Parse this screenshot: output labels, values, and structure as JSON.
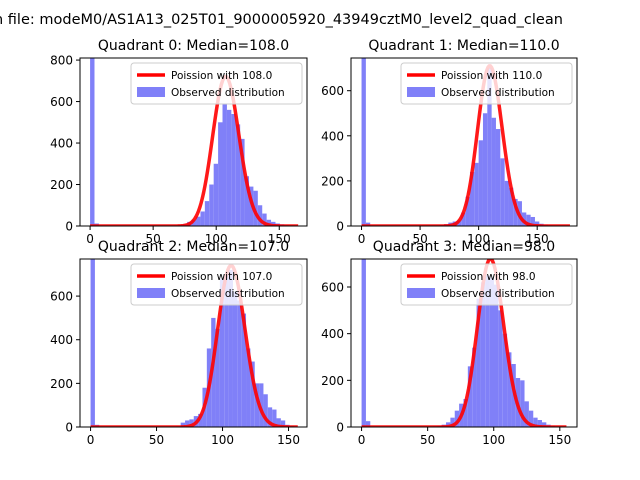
{
  "figure": {
    "suptitle": "n file: modeM0/AS1A13_025T01_9000005920_43949cztM0_level2_quad_clean"
  },
  "colors": {
    "bars": "#8080f8",
    "fit": "#ff0000"
  },
  "chart_data": [
    {
      "type": "bar",
      "title": "Quadrant 0: Median=108.0",
      "xlim": [
        -8,
        172
      ],
      "ylim": [
        0,
        810
      ],
      "xticks": [
        0,
        50,
        100,
        150
      ],
      "yticks": [
        0,
        200,
        400,
        600,
        800
      ],
      "bin_width": 3.5,
      "bins_x": [
        0,
        3.5,
        63,
        66.5,
        70,
        73.5,
        77,
        80.5,
        84,
        87.5,
        91,
        94.5,
        98,
        101.5,
        105,
        108.5,
        112,
        115.5,
        119,
        122.5,
        126,
        129.5,
        133,
        136.5,
        140,
        143.5,
        147,
        150.5,
        154,
        157.5,
        161
      ],
      "bins_y": [
        810,
        12,
        2,
        3,
        5,
        10,
        20,
        30,
        45,
        70,
        120,
        200,
        300,
        500,
        590,
        560,
        540,
        490,
        420,
        240,
        190,
        170,
        100,
        60,
        30,
        20,
        12,
        8,
        4,
        2,
        1
      ],
      "lambda": 108,
      "peak": 720,
      "xmax": 165,
      "legend": {
        "fit_label": "Poission with 108.0",
        "bar_label": "Observed distribution",
        "loc": "upper right"
      }
    },
    {
      "type": "bar",
      "title": "Quadrant 1: Median=110.0",
      "xlim": [
        -9,
        184
      ],
      "ylim": [
        0,
        745
      ],
      "xticks": [
        0,
        50,
        100,
        150
      ],
      "yticks": [
        0,
        200,
        400,
        600
      ],
      "bin_width": 3.7,
      "bins_x": [
        0,
        3.7,
        63,
        66.7,
        70.4,
        74.1,
        77.8,
        81.5,
        85.2,
        88.9,
        92.6,
        96.3,
        100,
        103.7,
        107.4,
        111.1,
        114.8,
        118.5,
        122.2,
        125.9,
        129.6,
        133.3,
        137,
        140.7,
        144.4,
        148.1,
        151.8,
        155.5,
        159.2,
        162.9
      ],
      "bins_y": [
        745,
        15,
        2,
        4,
        8,
        15,
        20,
        25,
        60,
        130,
        240,
        280,
        380,
        500,
        700,
        480,
        430,
        300,
        200,
        170,
        120,
        110,
        60,
        50,
        40,
        20,
        10,
        6,
        3,
        2
      ],
      "lambda": 110,
      "peak": 710,
      "xmax": 178,
      "legend": {
        "fit_label": "Poission with 110.0",
        "bar_label": "Observed distribution",
        "loc": "upper right"
      }
    },
    {
      "type": "bar",
      "title": "Quadrant 2: Median=107.0",
      "xlim": [
        -8,
        164
      ],
      "ylim": [
        0,
        770
      ],
      "xticks": [
        0,
        50,
        100,
        150
      ],
      "yticks": [
        0,
        200,
        400,
        600
      ],
      "bin_width": 3.3,
      "bins_x": [
        0,
        3.3,
        65,
        68.3,
        71.6,
        74.9,
        78.2,
        81.5,
        84.8,
        88.1,
        91.4,
        94.7,
        98,
        101.3,
        104.6,
        107.9,
        111.2,
        114.5,
        117.8,
        121.1,
        124.4,
        127.7,
        131,
        134.3,
        137.6,
        140.9,
        144.2,
        147.5,
        150.8,
        154.1
      ],
      "bins_y": [
        770,
        10,
        3,
        20,
        30,
        35,
        50,
        60,
        180,
        360,
        500,
        450,
        680,
        700,
        720,
        620,
        580,
        520,
        360,
        300,
        200,
        200,
        150,
        90,
        80,
        40,
        30,
        10,
        5,
        2
      ],
      "lambda": 107,
      "peak": 740,
      "xmax": 157,
      "legend": {
        "fit_label": "Poission with 107.0",
        "bar_label": "Observed distribution",
        "loc": "upper right"
      }
    },
    {
      "type": "bar",
      "title": "Quadrant 3: Median=98.0",
      "xlim": [
        -8,
        163
      ],
      "ylim": [
        0,
        720
      ],
      "xticks": [
        0,
        50,
        100,
        150
      ],
      "yticks": [
        0,
        200,
        400,
        600
      ],
      "bin_width": 3.3,
      "bins_x": [
        0,
        3.3,
        54,
        57.3,
        60.6,
        63.9,
        67.2,
        70.5,
        73.8,
        77.1,
        80.4,
        83.7,
        87,
        90.3,
        93.6,
        96.9,
        100.2,
        103.5,
        106.8,
        110.1,
        113.4,
        116.7,
        120,
        123.3,
        126.6,
        129.9,
        133.2,
        136.5,
        139.8,
        143.1,
        146.4
      ],
      "bins_y": [
        720,
        25,
        3,
        5,
        10,
        20,
        40,
        70,
        100,
        120,
        260,
        340,
        550,
        620,
        650,
        640,
        610,
        500,
        400,
        320,
        270,
        210,
        200,
        110,
        70,
        40,
        30,
        20,
        10,
        5,
        2
      ],
      "lambda": 98,
      "peak": 720,
      "xmax": 155,
      "legend": {
        "fit_label": "Poission with 98.0",
        "bar_label": "Observed distribution",
        "loc": "upper right"
      }
    }
  ]
}
